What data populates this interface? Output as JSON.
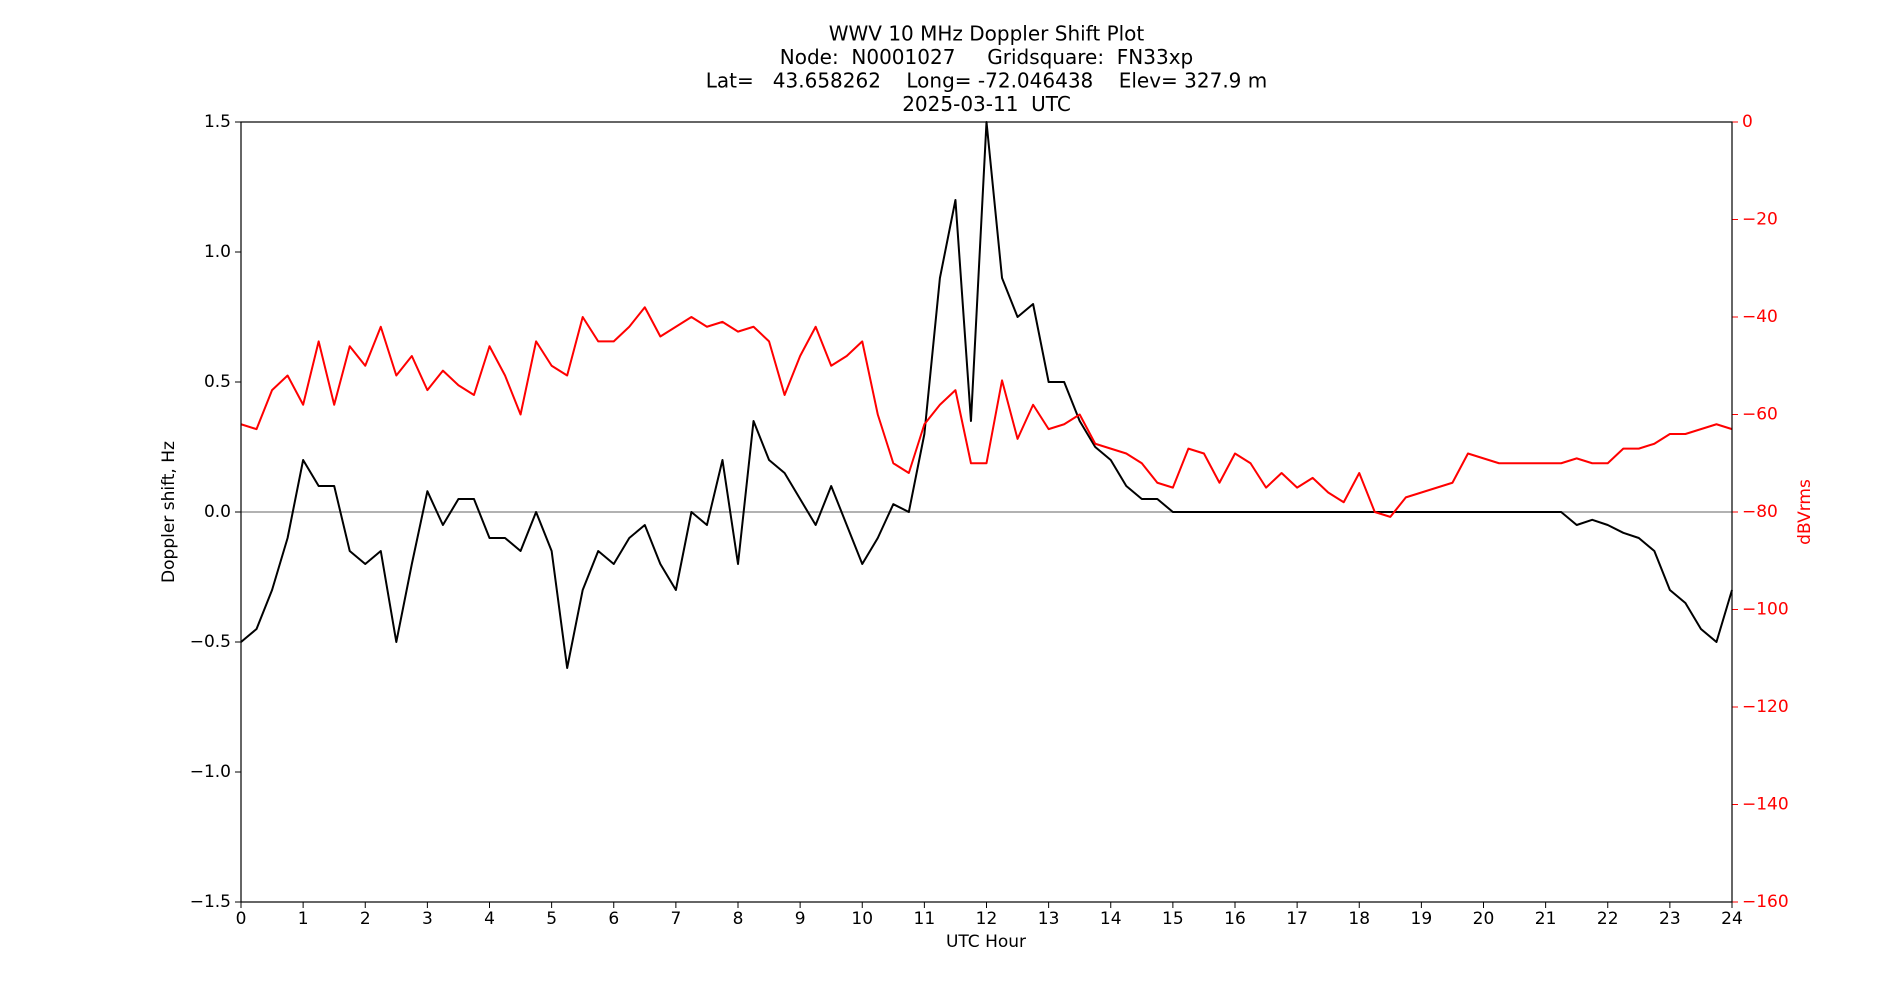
{
  "chart_data": {
    "type": "line",
    "title_lines": [
      "WWV 10 MHz Doppler Shift Plot",
      "Node:  N0001027     Gridsquare:  FN33xp",
      "Lat=   43.658262    Long= -72.046438    Elev= 327.9 m",
      "2025-03-11  UTC"
    ],
    "xlabel": "UTC Hour",
    "ylabel": "Doppler shift, Hz",
    "y2label": "dBVrms",
    "y2color": "#ff0000",
    "x": [
      0,
      0.25,
      0.5,
      0.75,
      1,
      1.25,
      1.5,
      1.75,
      2,
      2.25,
      2.5,
      2.75,
      3,
      3.25,
      3.5,
      3.75,
      4,
      4.25,
      4.5,
      4.75,
      5,
      5.25,
      5.5,
      5.75,
      6,
      6.25,
      6.5,
      6.75,
      7,
      7.25,
      7.5,
      7.75,
      8,
      8.25,
      8.5,
      8.75,
      9,
      9.25,
      9.5,
      9.75,
      10,
      10.25,
      10.5,
      10.75,
      11,
      11.25,
      11.5,
      11.75,
      12,
      12.25,
      12.5,
      12.75,
      13,
      13.25,
      13.5,
      13.75,
      14,
      14.25,
      14.5,
      14.75,
      15,
      15.25,
      15.5,
      15.75,
      16,
      16.25,
      16.5,
      16.75,
      17,
      17.25,
      17.5,
      17.75,
      18,
      18.25,
      18.5,
      18.75,
      19,
      19.25,
      19.5,
      19.75,
      20,
      20.25,
      20.5,
      20.75,
      21,
      21.25,
      21.5,
      21.75,
      22,
      22.25,
      22.5,
      22.75,
      23,
      23.25,
      23.5,
      23.75,
      24
    ],
    "series": [
      {
        "name": "Doppler shift",
        "color": "#000000",
        "values": [
          -0.5,
          -0.45,
          -0.3,
          -0.1,
          0.2,
          0.1,
          0.1,
          -0.15,
          -0.2,
          -0.15,
          -0.5,
          -0.2,
          0.08,
          -0.05,
          0.05,
          0.05,
          -0.1,
          -0.1,
          -0.15,
          0,
          -0.15,
          -0.6,
          -0.3,
          -0.15,
          -0.2,
          -0.1,
          -0.05,
          -0.2,
          -0.3,
          0,
          -0.05,
          0.2,
          -0.2,
          0.35,
          0.2,
          0.15,
          0.05,
          -0.05,
          0.1,
          -0.05,
          -0.2,
          -0.1,
          0.03,
          0,
          0.3,
          0.9,
          1.2,
          0.35,
          1.5,
          0.9,
          0.75,
          0.8,
          0.5,
          0.5,
          0.35,
          0.25,
          0.2,
          0.1,
          0.05,
          0.05,
          0,
          0,
          0,
          0,
          0,
          0,
          0,
          0,
          0,
          0,
          0,
          0,
          0,
          0,
          0,
          0,
          0,
          0,
          0,
          0,
          0,
          0,
          0,
          0,
          0,
          0,
          -0.05,
          -0.03,
          -0.05,
          -0.08,
          -0.1,
          -0.15,
          -0.3,
          -0.35,
          -0.45,
          -0.5,
          -0.3
        ]
      },
      {
        "name": "dBVrms",
        "color": "#ff0000",
        "axis": "y2",
        "values": [
          -62,
          -63,
          -55,
          -52,
          -58,
          -45,
          -58,
          -46,
          -50,
          -42,
          -52,
          -48,
          -55,
          -51,
          -54,
          -56,
          -46,
          -52,
          -60,
          -45,
          -50,
          -52,
          -40,
          -45,
          -45,
          -42,
          -38,
          -44,
          -42,
          -40,
          -42,
          -41,
          -43,
          -42,
          -45,
          -56,
          -48,
          -42,
          -50,
          -48,
          -45,
          -60,
          -70,
          -72,
          -62,
          -58,
          -55,
          -70,
          -70,
          -53,
          -65,
          -58,
          -63,
          -62,
          -60,
          -66,
          -67,
          -68,
          -70,
          -74,
          -75,
          -67,
          -68,
          -74,
          -68,
          -70,
          -75,
          -72,
          -75,
          -73,
          -76,
          -78,
          -72,
          -80,
          -81,
          -77,
          -76,
          -75,
          -74,
          -68,
          -69,
          -70,
          -70,
          -70,
          -70,
          -70,
          -69,
          -70,
          -70,
          -67,
          -67,
          -66,
          -64,
          -64,
          -63,
          -62,
          -63
        ]
      }
    ],
    "xlim": [
      0,
      24
    ],
    "xticks": [
      0,
      1,
      2,
      3,
      4,
      5,
      6,
      7,
      8,
      9,
      10,
      11,
      12,
      13,
      14,
      15,
      16,
      17,
      18,
      19,
      20,
      21,
      22,
      23,
      24
    ],
    "ylim": [
      -1.5,
      1.5
    ],
    "yticks": [
      {
        "value": -1.5,
        "label": "−1.5"
      },
      {
        "value": -1,
        "label": "−1.0"
      },
      {
        "value": -0.5,
        "label": "−0.5"
      },
      {
        "value": 0,
        "label": "0.0"
      },
      {
        "value": 0.5,
        "label": "0.5"
      },
      {
        "value": 1,
        "label": "1.0"
      },
      {
        "value": 1.5,
        "label": "1.5"
      }
    ],
    "y2lim": [
      -160,
      0
    ],
    "y2ticks": [
      {
        "value": -160,
        "label": "−160"
      },
      {
        "value": -140,
        "label": "−140"
      },
      {
        "value": -120,
        "label": "−120"
      },
      {
        "value": -100,
        "label": "−100"
      },
      {
        "value": -80,
        "label": "−80"
      },
      {
        "value": -60,
        "label": "−60"
      },
      {
        "value": -40,
        "label": "−40"
      },
      {
        "value": -20,
        "label": "−20"
      },
      0
    ],
    "hlines": [
      0
    ]
  }
}
